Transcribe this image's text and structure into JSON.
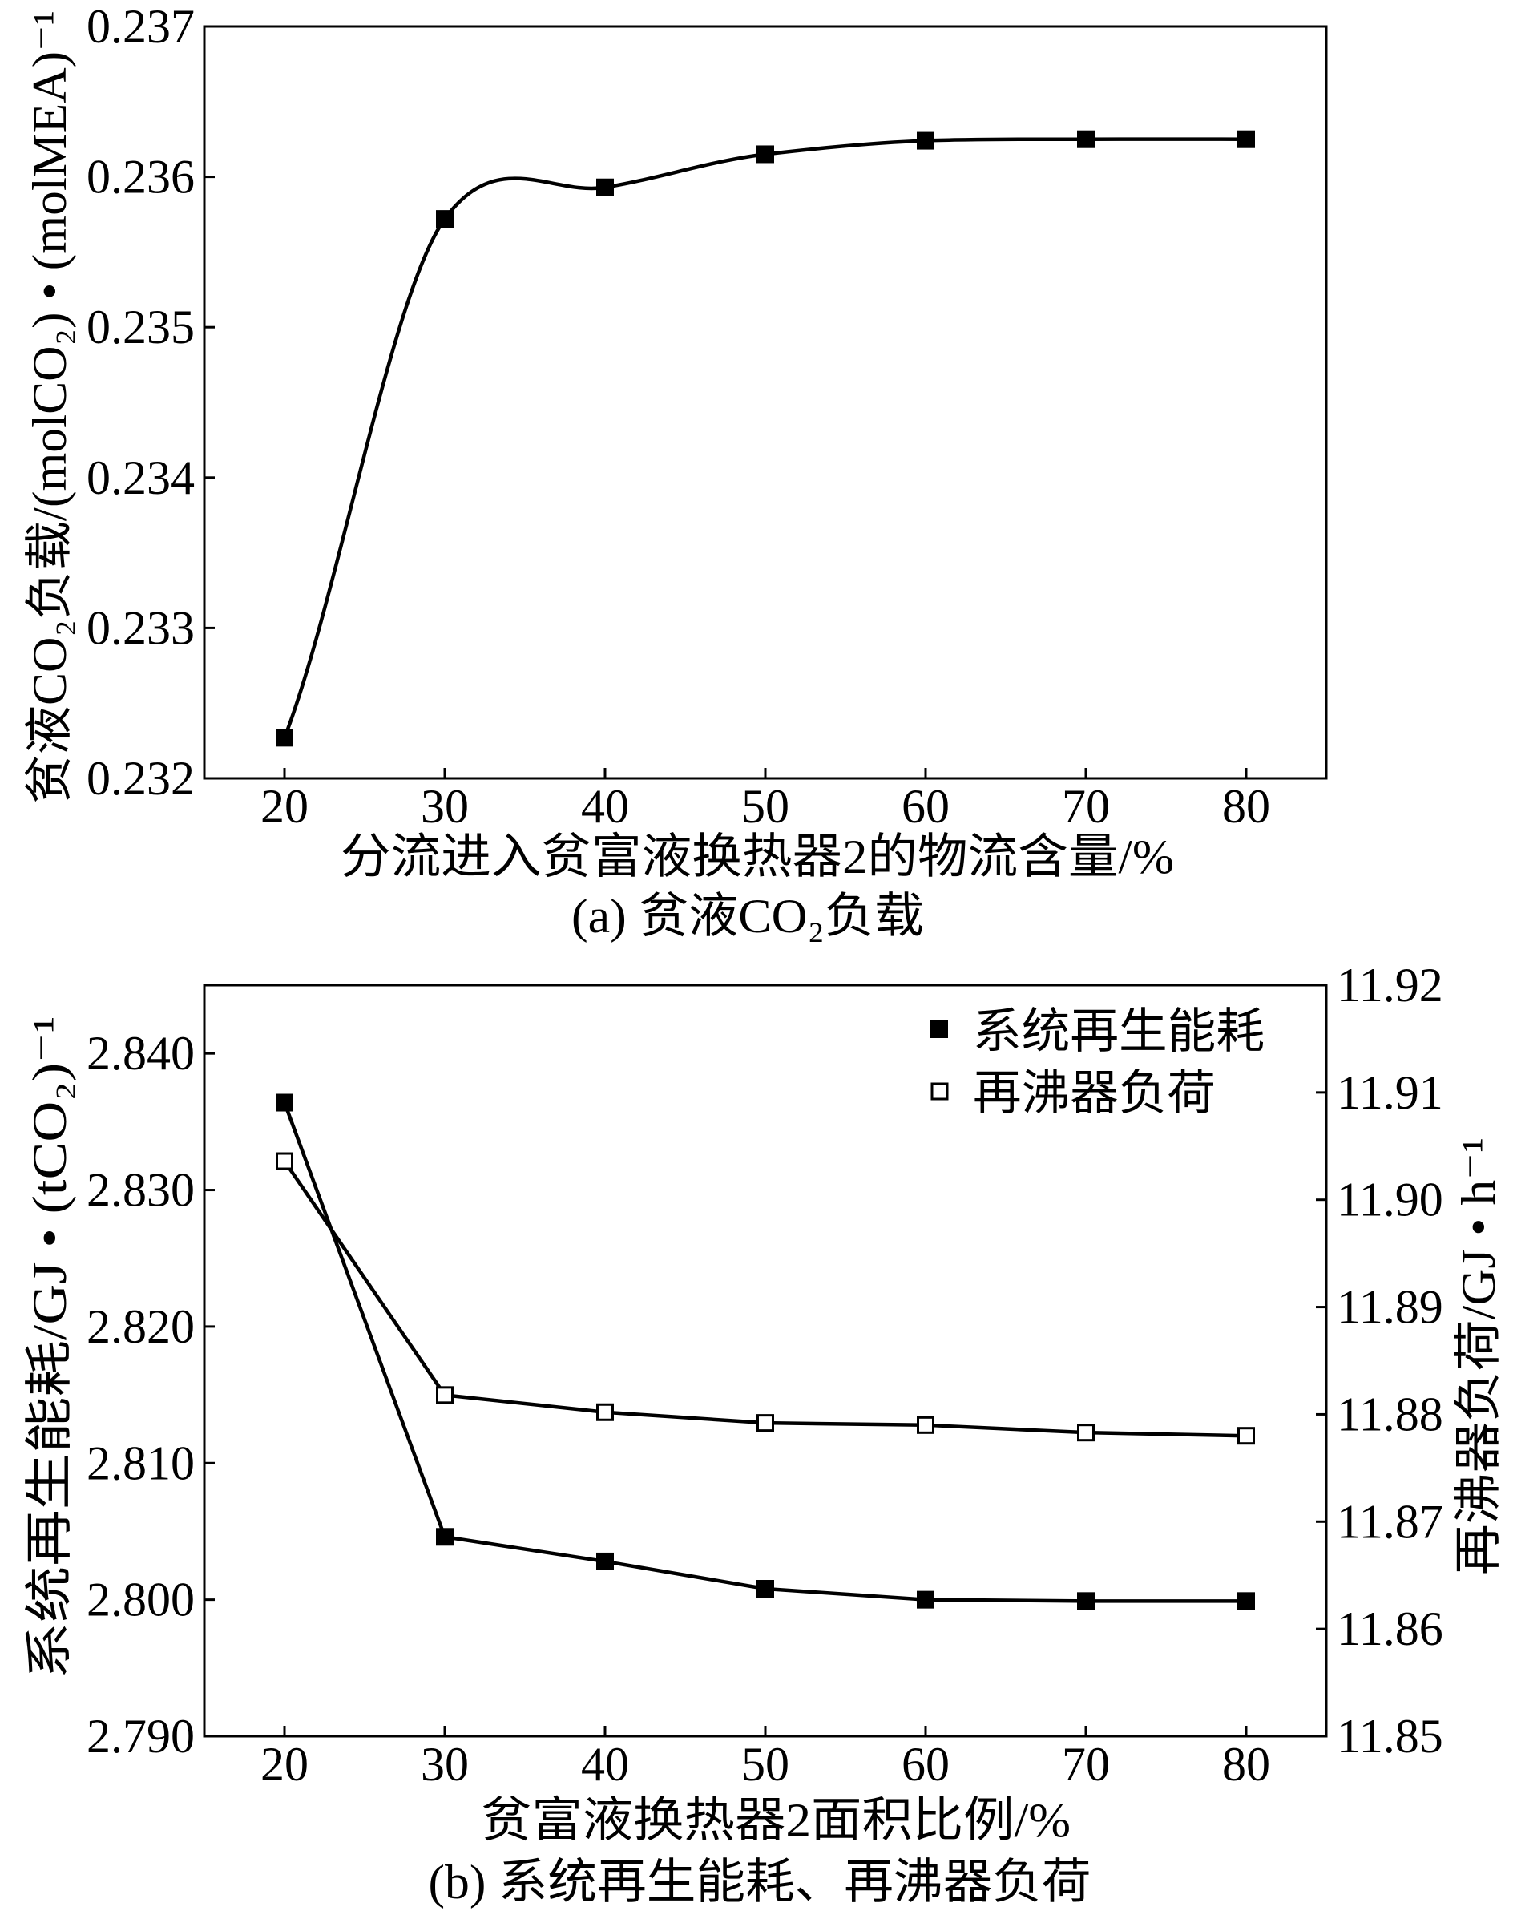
{
  "chart_data": [
    {
      "type": "line",
      "caption": "(a) 贫液CO₂负载",
      "xlabel": "分流进入贫富液换热器2的物流含量/%",
      "ylabel": "贫液CO₂负载/(molCO₂) • (molMEA)⁻¹",
      "x": [
        20,
        30,
        40,
        50,
        60,
        70,
        80
      ],
      "xlim": [
        15,
        85
      ],
      "xticks": [
        "20",
        "30",
        "40",
        "50",
        "60",
        "70",
        "80"
      ],
      "ylim": [
        0.232,
        0.237
      ],
      "yticks": [
        "0.232",
        "0.233",
        "0.234",
        "0.235",
        "0.236",
        "0.237"
      ],
      "grid": false,
      "series": [
        {
          "values": [
            0.23227,
            0.23572,
            0.23593,
            0.23615,
            0.23624,
            0.23625,
            0.23625
          ],
          "marker": "filled-square",
          "smoothed": true,
          "color": "#000000"
        }
      ]
    },
    {
      "type": "line",
      "caption": "(b) 系统再生能耗、再沸器负荷",
      "xlabel": "贫富液换热器2面积比例/%",
      "ylabel": "系统再生能耗/GJ • (tCO₂)⁻¹",
      "y2label": "再沸器负荷/GJ • h⁻¹",
      "x": [
        20,
        30,
        40,
        50,
        60,
        70,
        80
      ],
      "xlim": [
        15,
        85
      ],
      "xticks": [
        "20",
        "30",
        "40",
        "50",
        "60",
        "70",
        "80"
      ],
      "ylim": [
        2.79,
        2.845
      ],
      "yticks": [
        "2.790",
        "2.800",
        "2.810",
        "2.820",
        "2.830",
        "2.840"
      ],
      "y2lim": [
        11.85,
        11.92
      ],
      "y2ticks": [
        "11.85",
        "11.86",
        "11.87",
        "11.88",
        "11.89",
        "11.90",
        "11.91",
        "11.92"
      ],
      "grid": false,
      "legend": "top-right",
      "series": [
        {
          "name": "系统再生能耗",
          "yaxis": "left",
          "values": [
            2.8364,
            2.8046,
            2.8028,
            2.8008,
            2.8,
            2.7999,
            2.7999
          ],
          "marker": "filled-square",
          "smoothed": false,
          "color": "#000000"
        },
        {
          "name": "再沸器负荷",
          "yaxis": "right",
          "values": [
            11.9036,
            11.8818,
            11.8802,
            11.8792,
            11.879,
            11.8783,
            11.878
          ],
          "marker": "open-square",
          "smoothed": false,
          "color": "#000000"
        }
      ]
    }
  ]
}
